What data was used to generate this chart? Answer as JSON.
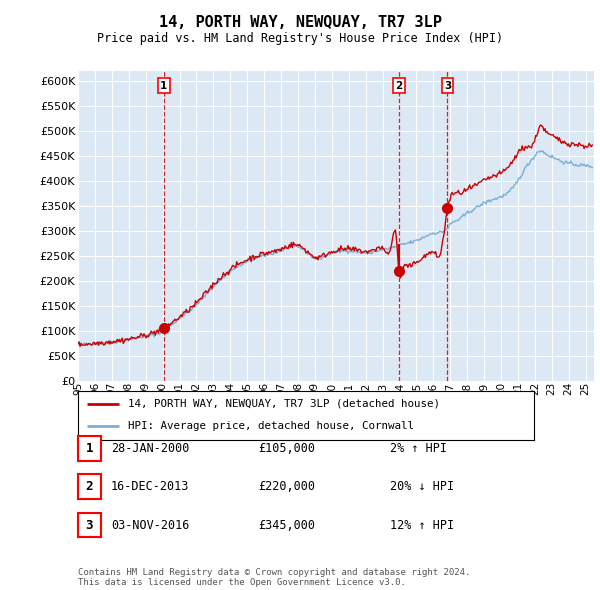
{
  "title": "14, PORTH WAY, NEWQUAY, TR7 3LP",
  "subtitle": "Price paid vs. HM Land Registry's House Price Index (HPI)",
  "background_color": "#dce9f5",
  "plot_background": "#dce9f5",
  "grid_color": "#ffffff",
  "hpi_line_color": "#7bafd4",
  "sale_line_color": "#cc0000",
  "sale_marker_color": "#cc0000",
  "vline_color": "#cc0000",
  "ylim": [
    0,
    620000
  ],
  "yticks": [
    0,
    50000,
    100000,
    150000,
    200000,
    250000,
    300000,
    350000,
    400000,
    450000,
    500000,
    550000,
    600000
  ],
  "transactions": [
    {
      "label": "1",
      "date_str": "28-JAN-2000",
      "price": 105000,
      "hpi_pct": "2%",
      "hpi_dir": "↑",
      "x_year": 2000.07
    },
    {
      "label": "2",
      "date_str": "16-DEC-2013",
      "price": 220000,
      "hpi_pct": "20%",
      "hpi_dir": "↓",
      "x_year": 2013.96
    },
    {
      "label": "3",
      "date_str": "03-NOV-2016",
      "price": 345000,
      "hpi_pct": "12%",
      "hpi_dir": "↑",
      "x_year": 2016.84
    }
  ],
  "legend_sale_label": "14, PORTH WAY, NEWQUAY, TR7 3LP (detached house)",
  "legend_hpi_label": "HPI: Average price, detached house, Cornwall",
  "footer": "Contains HM Land Registry data © Crown copyright and database right 2024.\nThis data is licensed under the Open Government Licence v3.0.",
  "xmin": 1995.0,
  "xmax": 2025.5
}
